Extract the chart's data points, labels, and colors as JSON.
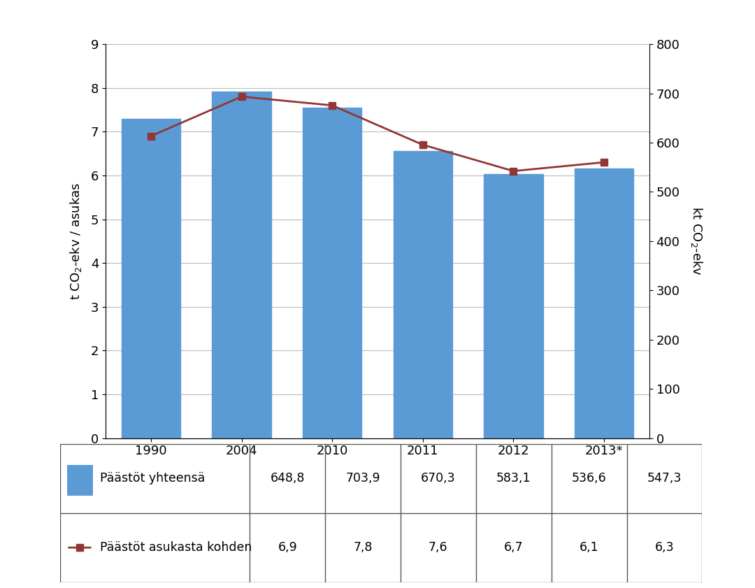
{
  "categories": [
    "1990",
    "2004",
    "2010",
    "2011",
    "2012",
    "2013*"
  ],
  "bar_values": [
    648.8,
    703.9,
    670.3,
    583.1,
    536.6,
    547.3
  ],
  "line_values": [
    6.9,
    7.8,
    7.6,
    6.7,
    6.1,
    6.3
  ],
  "bar_color": "#5B9BD5",
  "line_color": "#943634",
  "left_ylabel": "t CO$_2$-ekv / asukas",
  "right_ylabel": "kt CO$_2$-ekv",
  "left_ylim": [
    0,
    9
  ],
  "right_ylim": [
    0,
    800
  ],
  "left_yticks": [
    0,
    1,
    2,
    3,
    4,
    5,
    6,
    7,
    8,
    9
  ],
  "right_yticks": [
    0,
    100,
    200,
    300,
    400,
    500,
    600,
    700,
    800
  ],
  "legend_bar_label": "Päästöt yhteensä",
  "legend_line_label": "Päästöt asukasta kohden",
  "table_bar_values": [
    "648,8",
    "703,9",
    "670,3",
    "583,1",
    "536,6",
    "547,3"
  ],
  "table_line_values": [
    "6,9",
    "7,8",
    "7,6",
    "6,7",
    "6,1",
    "6,3"
  ],
  "background_color": "#FFFFFF",
  "grid_color": "#BBBBBB",
  "bar_width": 0.65
}
